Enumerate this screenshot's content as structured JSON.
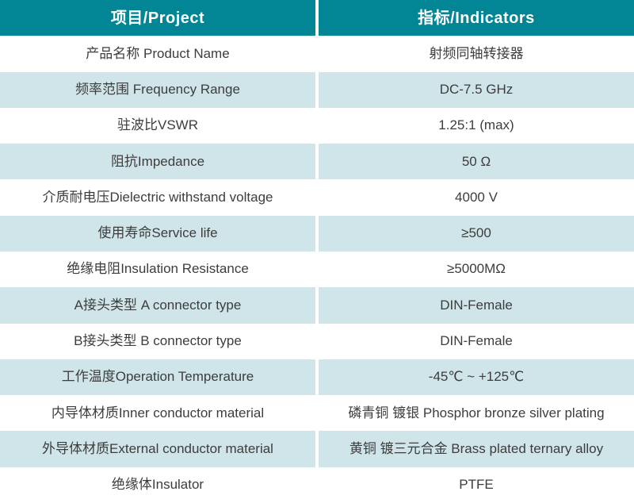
{
  "table": {
    "header": {
      "project": "项目/Project",
      "indicators": "指标/Indicators"
    },
    "rows": [
      {
        "project": "产品名称 Product Name",
        "indicator": "射频同轴转接器"
      },
      {
        "project": "频率范围 Frequency Range",
        "indicator": "DC-7.5 GHz"
      },
      {
        "project": "驻波比VSWR",
        "indicator": "1.25:1 (max)"
      },
      {
        "project": "阻抗Impedance",
        "indicator": "50 Ω"
      },
      {
        "project": "介质耐电压Dielectric withstand voltage",
        "indicator": "4000 V"
      },
      {
        "project": "使用寿命Service life",
        "indicator": "≥500"
      },
      {
        "project": "绝缘电阻Insulation Resistance",
        "indicator": "≥5000MΩ"
      },
      {
        "project": "A接头类型 A connector type",
        "indicator": "DIN-Female"
      },
      {
        "project": "B接头类型 B connector type",
        "indicator": "DIN-Female"
      },
      {
        "project": "工作温度Operation Temperature",
        "indicator": "-45℃ ~ +125℃"
      },
      {
        "project": "内导体材质Inner conductor material",
        "indicator": "磷青铜 镀银 Phosphor bronze silver plating"
      },
      {
        "project": "外导体材质External conductor material",
        "indicator": "黄铜 镀三元合金 Brass plated ternary alloy"
      },
      {
        "project": "绝缘体Insulator",
        "indicator": "PTFE"
      }
    ],
    "colors": {
      "header_bg": "#028696",
      "header_text": "#ffffff",
      "row_bg": "#ffffff",
      "row_alt_bg": "#cfe5e9",
      "body_text": "#3d3d3d",
      "divider": "#ffffff"
    }
  }
}
